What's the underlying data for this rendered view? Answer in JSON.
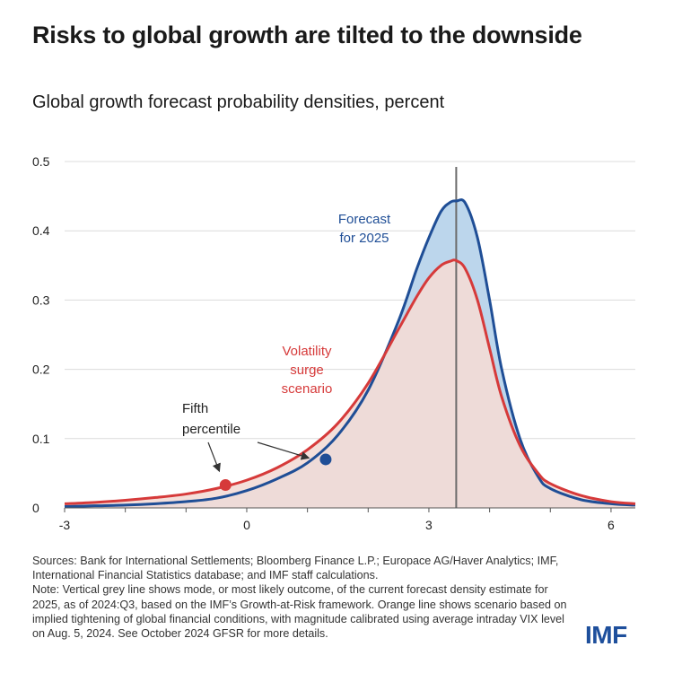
{
  "title": "Risks to global growth are tilted to the downside",
  "subtitle": "Global growth forecast probability densities, percent",
  "notes": {
    "sources": "Sources:  Bank for International Settlements; Bloomberg Finance L.P.; Europace AG/Haver Analytics; IMF, International Financial Statistics database; and IMF staff calculations.",
    "note": "Note: Vertical grey line shows mode, or most likely outcome, of the current forecast density estimate for 2025, as of 2024:Q3,  based on the IMF’s Growth-at-Risk framework. Orange line shows scenario based on implied tightening of global financial conditions, with magnitude calibrated using average intraday VIX level on Aug. 5, 2024. See October 2024 GFSR for more details."
  },
  "logo": "IMF",
  "chart_data": {
    "type": "area",
    "xlim": [
      -3,
      6.4
    ],
    "ylim": [
      0,
      0.5
    ],
    "x_ticks": [
      {
        "value": -3,
        "label": "-3"
      },
      {
        "value": 0,
        "label": "0"
      },
      {
        "value": 3,
        "label": "3"
      },
      {
        "value": 6,
        "label": "6"
      }
    ],
    "y_ticks": [
      {
        "value": 0,
        "label": "0"
      },
      {
        "value": 0.1,
        "label": "0.1"
      },
      {
        "value": 0.2,
        "label": "0.2"
      },
      {
        "value": 0.3,
        "label": "0.3"
      },
      {
        "value": 0.4,
        "label": "0.4"
      },
      {
        "value": 0.5,
        "label": "0.5"
      }
    ],
    "grid": true,
    "mode_line_x": 3.45,
    "series": [
      {
        "name": "Forecast for 2025",
        "color": "#1f4e96",
        "fill": "#bcd6ec",
        "x": [
          -3,
          -2.5,
          -2,
          -1.5,
          -1,
          -0.5,
          0,
          0.5,
          1,
          1.5,
          2,
          2.5,
          2.8,
          3.0,
          3.2,
          3.35,
          3.45,
          3.6,
          3.8,
          4.0,
          4.2,
          4.5,
          4.8,
          5.0,
          5.5,
          6.0,
          6.4
        ],
        "y": [
          0.002,
          0.003,
          0.004,
          0.006,
          0.009,
          0.014,
          0.025,
          0.042,
          0.065,
          0.105,
          0.17,
          0.27,
          0.345,
          0.39,
          0.428,
          0.441,
          0.443,
          0.44,
          0.39,
          0.3,
          0.2,
          0.1,
          0.045,
          0.028,
          0.012,
          0.006,
          0.004
        ]
      },
      {
        "name": "Volatility surge scenario",
        "color": "#d63a3a",
        "fill": "#f3dcd6",
        "x": [
          -3,
          -2.5,
          -2,
          -1.5,
          -1,
          -0.5,
          0,
          0.5,
          1,
          1.5,
          2,
          2.5,
          2.8,
          3.0,
          3.2,
          3.35,
          3.45,
          3.6,
          3.8,
          4.0,
          4.2,
          4.5,
          4.8,
          5.0,
          5.5,
          6.0,
          6.4
        ],
        "y": [
          0.006,
          0.008,
          0.011,
          0.015,
          0.02,
          0.028,
          0.04,
          0.058,
          0.084,
          0.122,
          0.18,
          0.258,
          0.305,
          0.332,
          0.35,
          0.356,
          0.357,
          0.345,
          0.3,
          0.23,
          0.16,
          0.09,
          0.05,
          0.035,
          0.018,
          0.009,
          0.006
        ]
      }
    ],
    "markers": [
      {
        "series": "Volatility surge scenario",
        "x": -0.35,
        "y": 0.033,
        "color": "#d63a3a"
      },
      {
        "series": "Forecast for 2025",
        "x": 1.3,
        "y": 0.07,
        "color": "#1f4e96"
      }
    ],
    "annotations": {
      "forecast": [
        "Forecast",
        "for 2025"
      ],
      "volatility": [
        "Volatility",
        "surge",
        "scenario"
      ],
      "fifth": [
        "Fifth",
        "percentile"
      ]
    }
  }
}
